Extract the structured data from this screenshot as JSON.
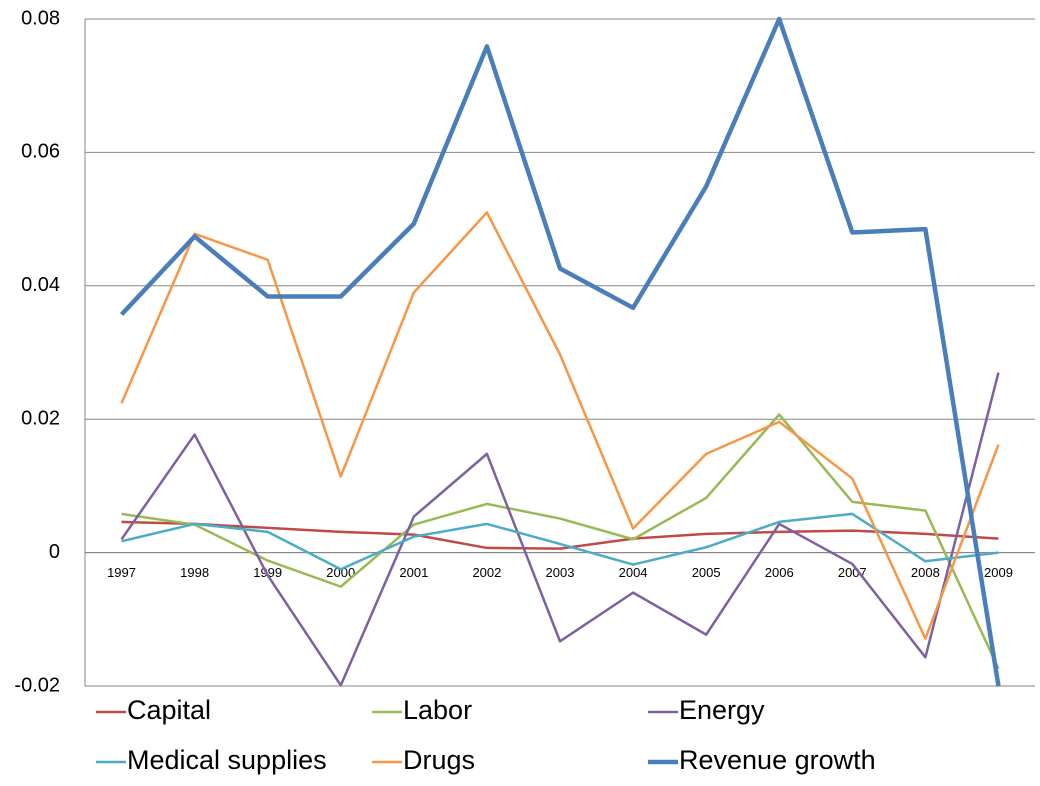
{
  "chart_data": {
    "type": "line",
    "categories": [
      "1997",
      "1998",
      "1999",
      "2000",
      "2001",
      "2002",
      "2003",
      "2004",
      "2005",
      "2006",
      "2007",
      "2008",
      "2009"
    ],
    "series": [
      {
        "name": "Capital",
        "color": "#be4b48",
        "values": [
          0.0046,
          0.0043,
          0.0037,
          0.0031,
          0.0027,
          0.0007,
          0.0006,
          0.0021,
          0.0028,
          0.0031,
          0.0033,
          0.0028,
          0.0021
        ]
      },
      {
        "name": "Labor",
        "color": "#98b954",
        "values": [
          0.0058,
          0.0042,
          -0.0012,
          -0.0051,
          0.0042,
          0.0073,
          0.0051,
          0.002,
          0.0082,
          0.0207,
          0.0076,
          0.0063,
          -0.0174
        ]
      },
      {
        "name": "Energy",
        "color": "#7d60a0",
        "values": [
          0.002,
          0.0177,
          -0.0034,
          -0.0199,
          0.0054,
          0.0148,
          -0.0133,
          -0.006,
          -0.0123,
          0.0043,
          -0.0017,
          -0.0157,
          0.027
        ]
      },
      {
        "name": "Medical supplies",
        "color": "#4bacc6",
        "values": [
          0.0017,
          0.0043,
          0.0031,
          -0.0025,
          0.0024,
          0.0043,
          0.0013,
          -0.0018,
          0.0008,
          0.0046,
          0.0058,
          -0.0013,
          0
        ]
      },
      {
        "name": "Drugs",
        "color": "#f79646",
        "values": [
          0.0224,
          0.0478,
          0.0439,
          0.0114,
          0.039,
          0.051,
          0.0297,
          0.0036,
          0.0148,
          0.0196,
          0.0111,
          -0.0129,
          0.0162
        ]
      },
      {
        "name": "Revenue growth",
        "color": "#4a7ebb",
        "values": [
          0.0357,
          0.0474,
          0.0384,
          0.0384,
          0.0493,
          0.0759,
          0.0426,
          0.0367,
          0.0549,
          0.08,
          0.048,
          0.0485,
          -0.02
        ]
      }
    ],
    "ylim": [
      -0.02,
      0.08
    ],
    "yticks": [
      -0.02,
      0,
      0.02,
      0.04,
      0.06,
      0.08
    ],
    "grid": true,
    "legend": "bottom"
  }
}
